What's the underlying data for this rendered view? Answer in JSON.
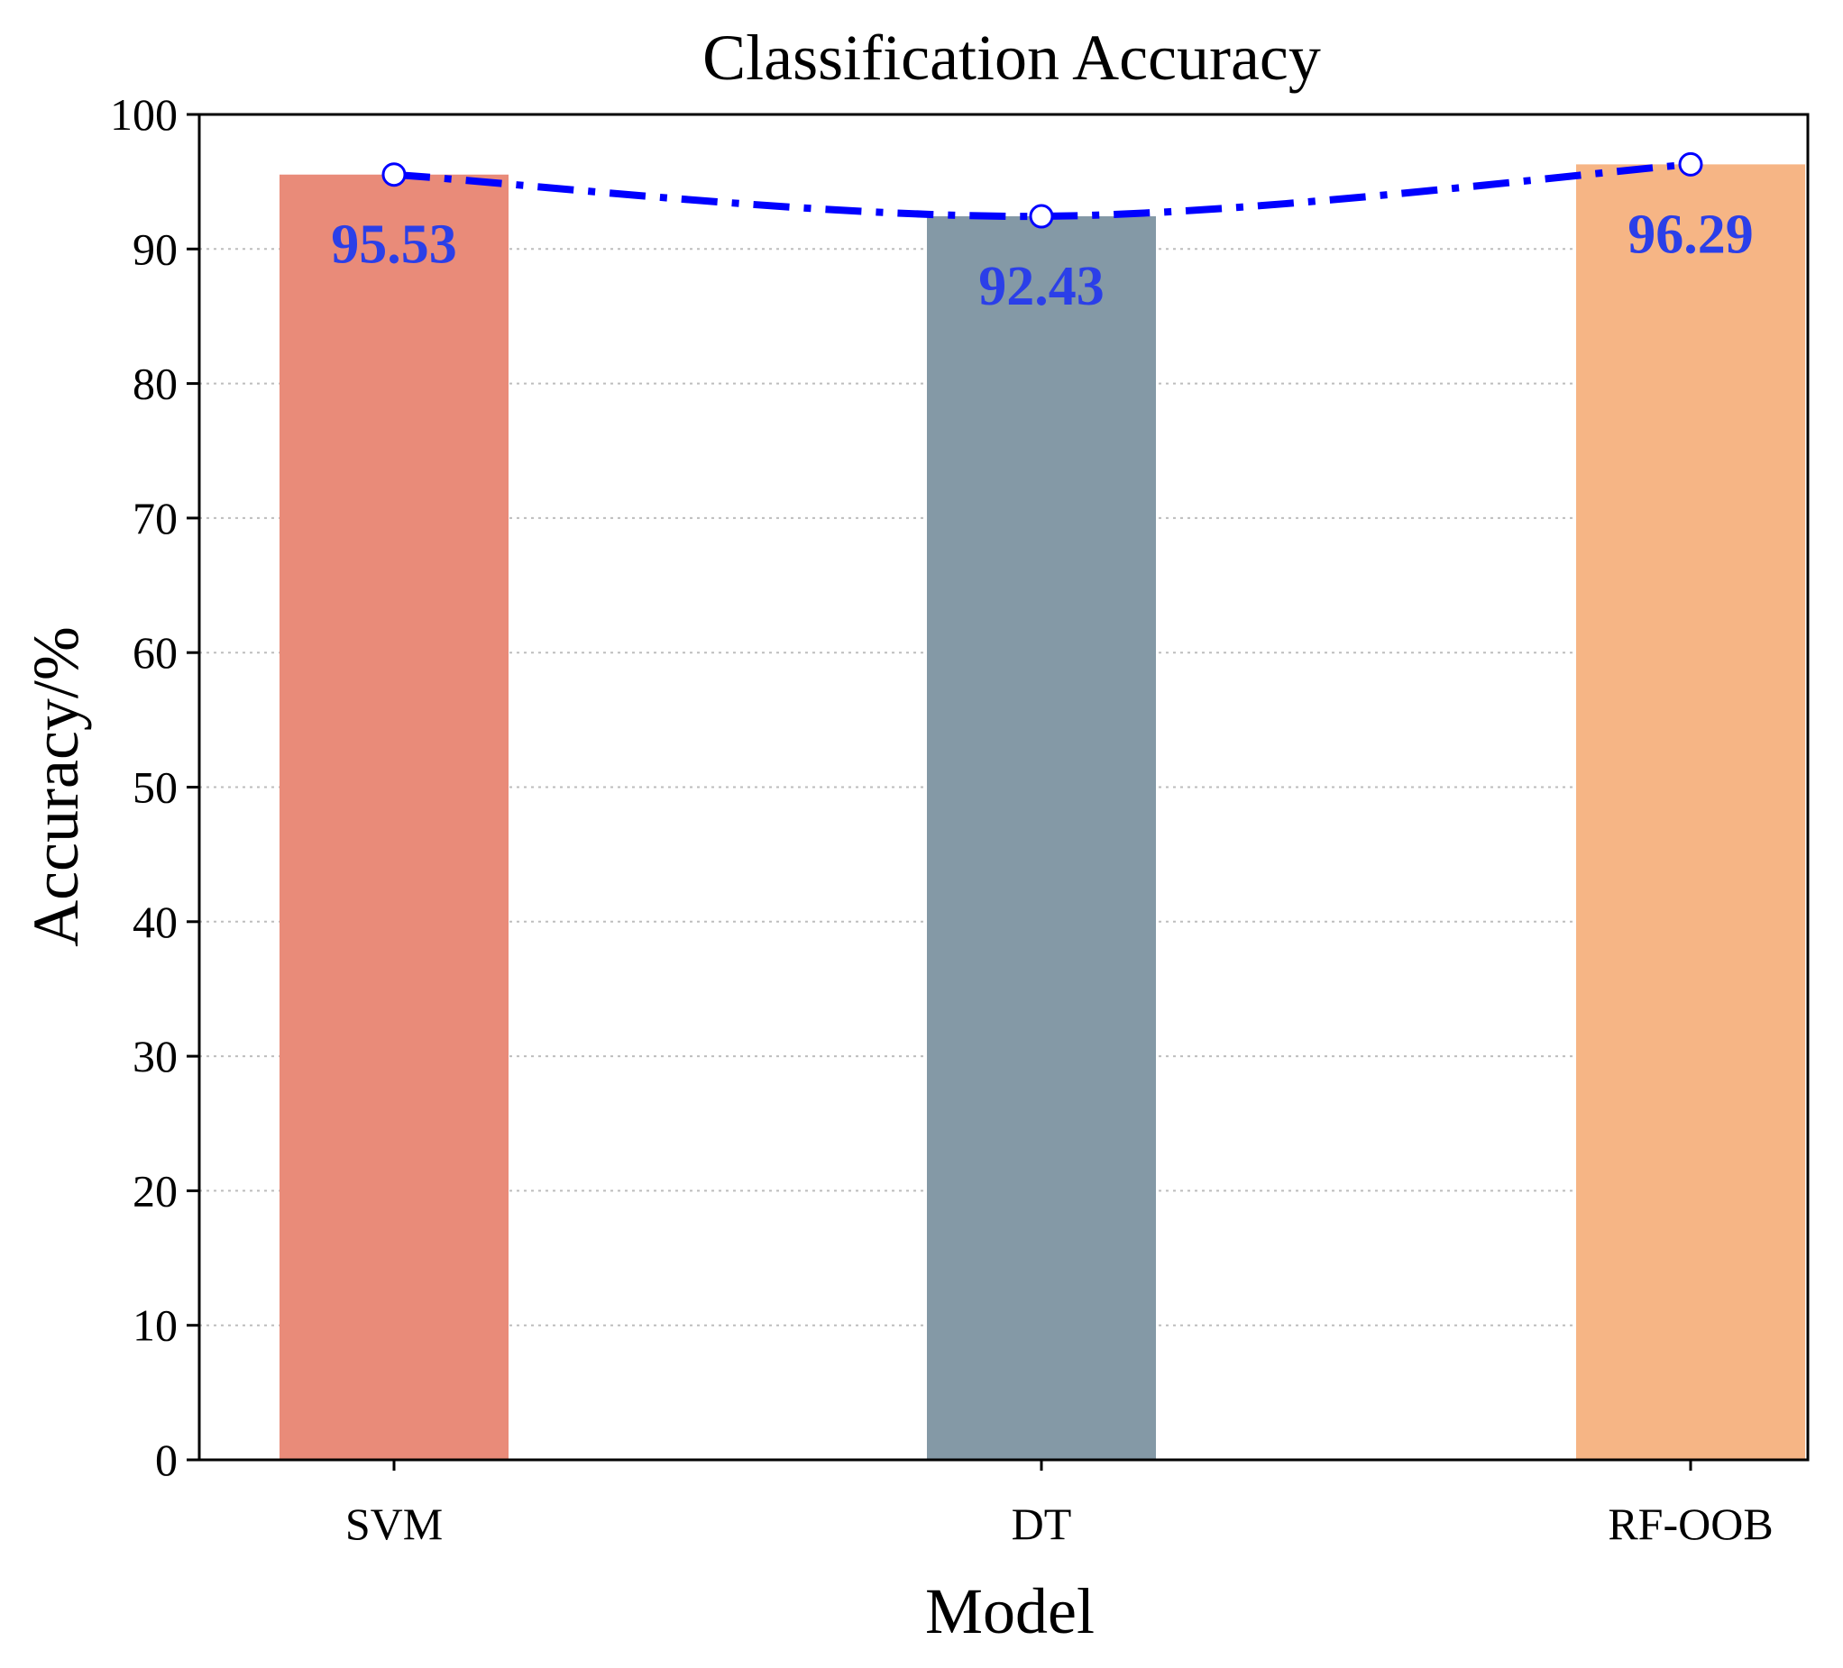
{
  "chart_data": {
    "type": "bar",
    "title": "Classification Accuracy",
    "xlabel": "Model",
    "ylabel": "Accuracy/%",
    "categories": [
      "SVM",
      "DT",
      "RF-OOB"
    ],
    "values": [
      95.53,
      92.43,
      96.29
    ],
    "value_labels": [
      "95.53",
      "92.43",
      "96.29"
    ],
    "bar_colors": [
      "#E98B79",
      "#8499A6",
      "#F6B585"
    ],
    "ylim": [
      0,
      100
    ],
    "yticks": [
      0,
      10,
      20,
      30,
      40,
      50,
      60,
      70,
      80,
      90,
      100
    ],
    "ytick_labels": [
      "0",
      "10",
      "20",
      "30",
      "40",
      "50",
      "60",
      "70",
      "80",
      "90",
      "100"
    ],
    "grid": true,
    "overlay_line": {
      "style": "dash-dot",
      "color": "#0000FF",
      "marker": "hollow-circle",
      "values": [
        95.53,
        92.43,
        96.29
      ]
    },
    "label_color": "#2B3FE8"
  }
}
